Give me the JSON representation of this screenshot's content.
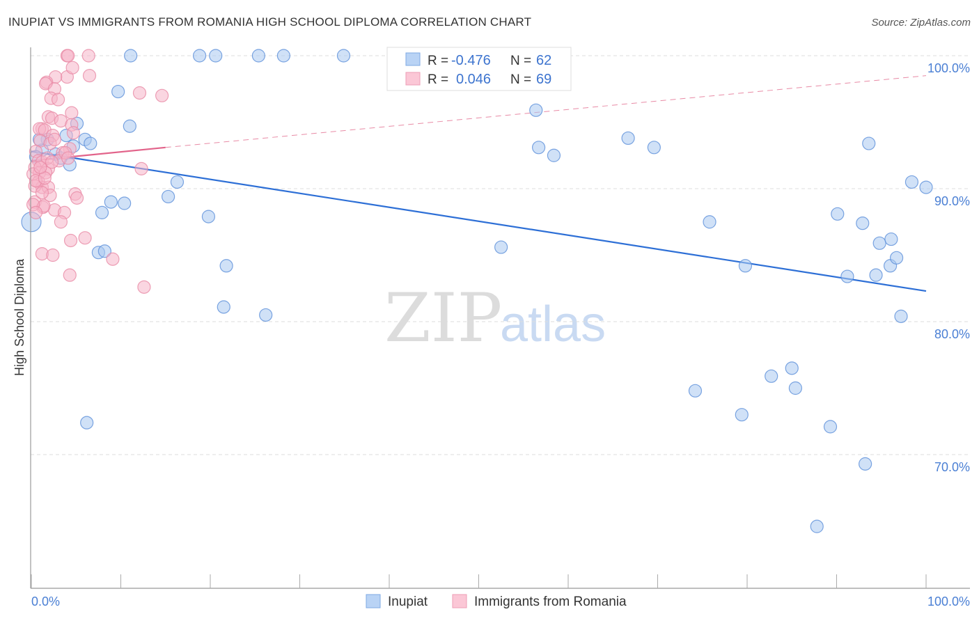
{
  "header": {
    "title": "INUPIAT VS IMMIGRANTS FROM ROMANIA HIGH SCHOOL DIPLOMA CORRELATION CHART",
    "source": "Source: ZipAtlas.com"
  },
  "watermark": {
    "zip": "ZIP",
    "atlas": "atlas"
  },
  "legend_box": [
    {
      "r_label": "R = ",
      "r_value": "-0.476",
      "n_label": "N = ",
      "n_value": "62"
    },
    {
      "r_label": "R = ",
      "r_value": "0.046",
      "n_label": "N = ",
      "n_value": "69"
    }
  ],
  "chart_data": {
    "type": "scatter",
    "title": "INUPIAT VS IMMIGRANTS FROM ROMANIA HIGH SCHOOL DIPLOMA CORRELATION CHART",
    "xlabel": "",
    "ylabel": "High School Diploma",
    "xlim": [
      0,
      100
    ],
    "ylim": [
      60,
      100
    ],
    "x_tick_labels": [
      "0.0%",
      "100.0%"
    ],
    "y_ticks": [
      100,
      90,
      80,
      70
    ],
    "y_tick_labels": [
      "100.0%",
      "90.0%",
      "80.0%",
      "70.0%"
    ],
    "grid": true,
    "legend_position": "bottom",
    "series": [
      {
        "name": "Inupiat",
        "color": "#5b8fd9",
        "fill": "#a9c8f0",
        "trend": [
          [
            0,
            92.8
          ],
          [
            100,
            82.3
          ]
        ],
        "points": [
          [
            0,
            87.5
          ],
          [
            1.8,
            93.7
          ],
          [
            2.7,
            92.6
          ],
          [
            3.3,
            92.3
          ],
          [
            3.9,
            94.0
          ],
          [
            4.3,
            91.8
          ],
          [
            4.7,
            93.2
          ],
          [
            5.1,
            94.9
          ],
          [
            6.0,
            93.7
          ],
          [
            6.6,
            93.4
          ],
          [
            6.2,
            72.4
          ],
          [
            7.5,
            85.2
          ],
          [
            8.2,
            85.3
          ],
          [
            7.9,
            88.2
          ],
          [
            8.9,
            89.0
          ],
          [
            9.7,
            97.3
          ],
          [
            10.4,
            88.9
          ],
          [
            11.0,
            94.7
          ],
          [
            11.1,
            100
          ],
          [
            15.3,
            89.4
          ],
          [
            16.3,
            90.5
          ],
          [
            18.8,
            100
          ],
          [
            20.6,
            100
          ],
          [
            19.8,
            87.9
          ],
          [
            21.8,
            84.2
          ],
          [
            21.5,
            81.1
          ],
          [
            25.4,
            100
          ],
          [
            26.2,
            80.5
          ],
          [
            28.2,
            100
          ],
          [
            34.9,
            100
          ],
          [
            47.1,
            100
          ],
          [
            52.5,
            85.6
          ],
          [
            56.4,
            95.9
          ],
          [
            56.7,
            93.1
          ],
          [
            58.4,
            92.5
          ],
          [
            66.7,
            93.8
          ],
          [
            69.6,
            93.1
          ],
          [
            74.2,
            74.8
          ],
          [
            75.8,
            87.5
          ],
          [
            79.4,
            73.0
          ],
          [
            79.8,
            84.2
          ],
          [
            82.7,
            75.9
          ],
          [
            85.0,
            76.5
          ],
          [
            85.4,
            75.0
          ],
          [
            87.8,
            64.6
          ],
          [
            89.3,
            72.1
          ],
          [
            90.1,
            88.1
          ],
          [
            91.2,
            83.4
          ],
          [
            92.9,
            87.4
          ],
          [
            93.2,
            69.3
          ],
          [
            93.6,
            93.4
          ],
          [
            94.4,
            83.5
          ],
          [
            94.8,
            85.9
          ],
          [
            96.0,
            84.2
          ],
          [
            96.1,
            86.2
          ],
          [
            96.7,
            84.8
          ],
          [
            97.2,
            80.4
          ],
          [
            98.4,
            90.5
          ],
          [
            100,
            90.1
          ],
          [
            1.2,
            92.9
          ],
          [
            0.9,
            93.7
          ],
          [
            0.5,
            92.4
          ]
        ]
      },
      {
        "name": "Immigrants from Romania",
        "color": "#e88aa5",
        "fill": "#f5b5c8",
        "trend": [
          [
            0,
            92.1
          ],
          [
            15,
            93.1
          ],
          [
            100,
            98.5
          ]
        ],
        "points": [
          [
            4.0,
            100
          ],
          [
            4.1,
            100
          ],
          [
            6.4,
            100
          ],
          [
            4.0,
            98.4
          ],
          [
            4.6,
            99.1
          ],
          [
            6.5,
            98.5
          ],
          [
            2.7,
            98.4
          ],
          [
            1.7,
            98.0
          ],
          [
            1.6,
            97.9
          ],
          [
            2.6,
            97.5
          ],
          [
            2.2,
            96.8
          ],
          [
            3.0,
            96.7
          ],
          [
            12.1,
            97.2
          ],
          [
            14.6,
            97.0
          ],
          [
            4.5,
            95.7
          ],
          [
            1.9,
            95.4
          ],
          [
            2.3,
            95.3
          ],
          [
            3.3,
            95.1
          ],
          [
            4.5,
            94.8
          ],
          [
            1.2,
            94.5
          ],
          [
            0.9,
            94.5
          ],
          [
            1.5,
            94.4
          ],
          [
            4.7,
            94.2
          ],
          [
            2.4,
            94.0
          ],
          [
            1.0,
            93.6
          ],
          [
            2.1,
            93.4
          ],
          [
            4.3,
            93.0
          ],
          [
            3.5,
            92.7
          ],
          [
            0.5,
            92.8
          ],
          [
            0.8,
            92.1
          ],
          [
            1.2,
            92.0
          ],
          [
            0.4,
            91.6
          ],
          [
            1.9,
            91.5
          ],
          [
            0.9,
            91.2
          ],
          [
            0.2,
            91.1
          ],
          [
            1.6,
            91.2
          ],
          [
            12.3,
            91.5
          ],
          [
            0.8,
            90.5
          ],
          [
            1.2,
            90.1
          ],
          [
            1.9,
            90.1
          ],
          [
            0.4,
            90.2
          ],
          [
            4.9,
            89.6
          ],
          [
            5.1,
            89.3
          ],
          [
            2.1,
            89.5
          ],
          [
            0.4,
            89.0
          ],
          [
            1.3,
            88.6
          ],
          [
            2.6,
            88.4
          ],
          [
            3.7,
            88.2
          ],
          [
            3.3,
            87.5
          ],
          [
            4.4,
            86.1
          ],
          [
            6.0,
            86.3
          ],
          [
            9.1,
            84.7
          ],
          [
            1.2,
            85.1
          ],
          [
            2.4,
            85.0
          ],
          [
            4.3,
            83.5
          ],
          [
            12.6,
            82.6
          ],
          [
            1.2,
            89.7
          ],
          [
            1.4,
            88.7
          ],
          [
            0.2,
            88.8
          ],
          [
            0.5,
            88.2
          ],
          [
            3.1,
            92.1
          ],
          [
            3.8,
            92.7
          ],
          [
            2.6,
            93.7
          ],
          [
            4.1,
            92.3
          ],
          [
            1.8,
            92.3
          ],
          [
            0.5,
            90.6
          ],
          [
            1.5,
            90.8
          ],
          [
            1.0,
            91.6
          ],
          [
            2.3,
            92.0
          ]
        ]
      }
    ]
  }
}
